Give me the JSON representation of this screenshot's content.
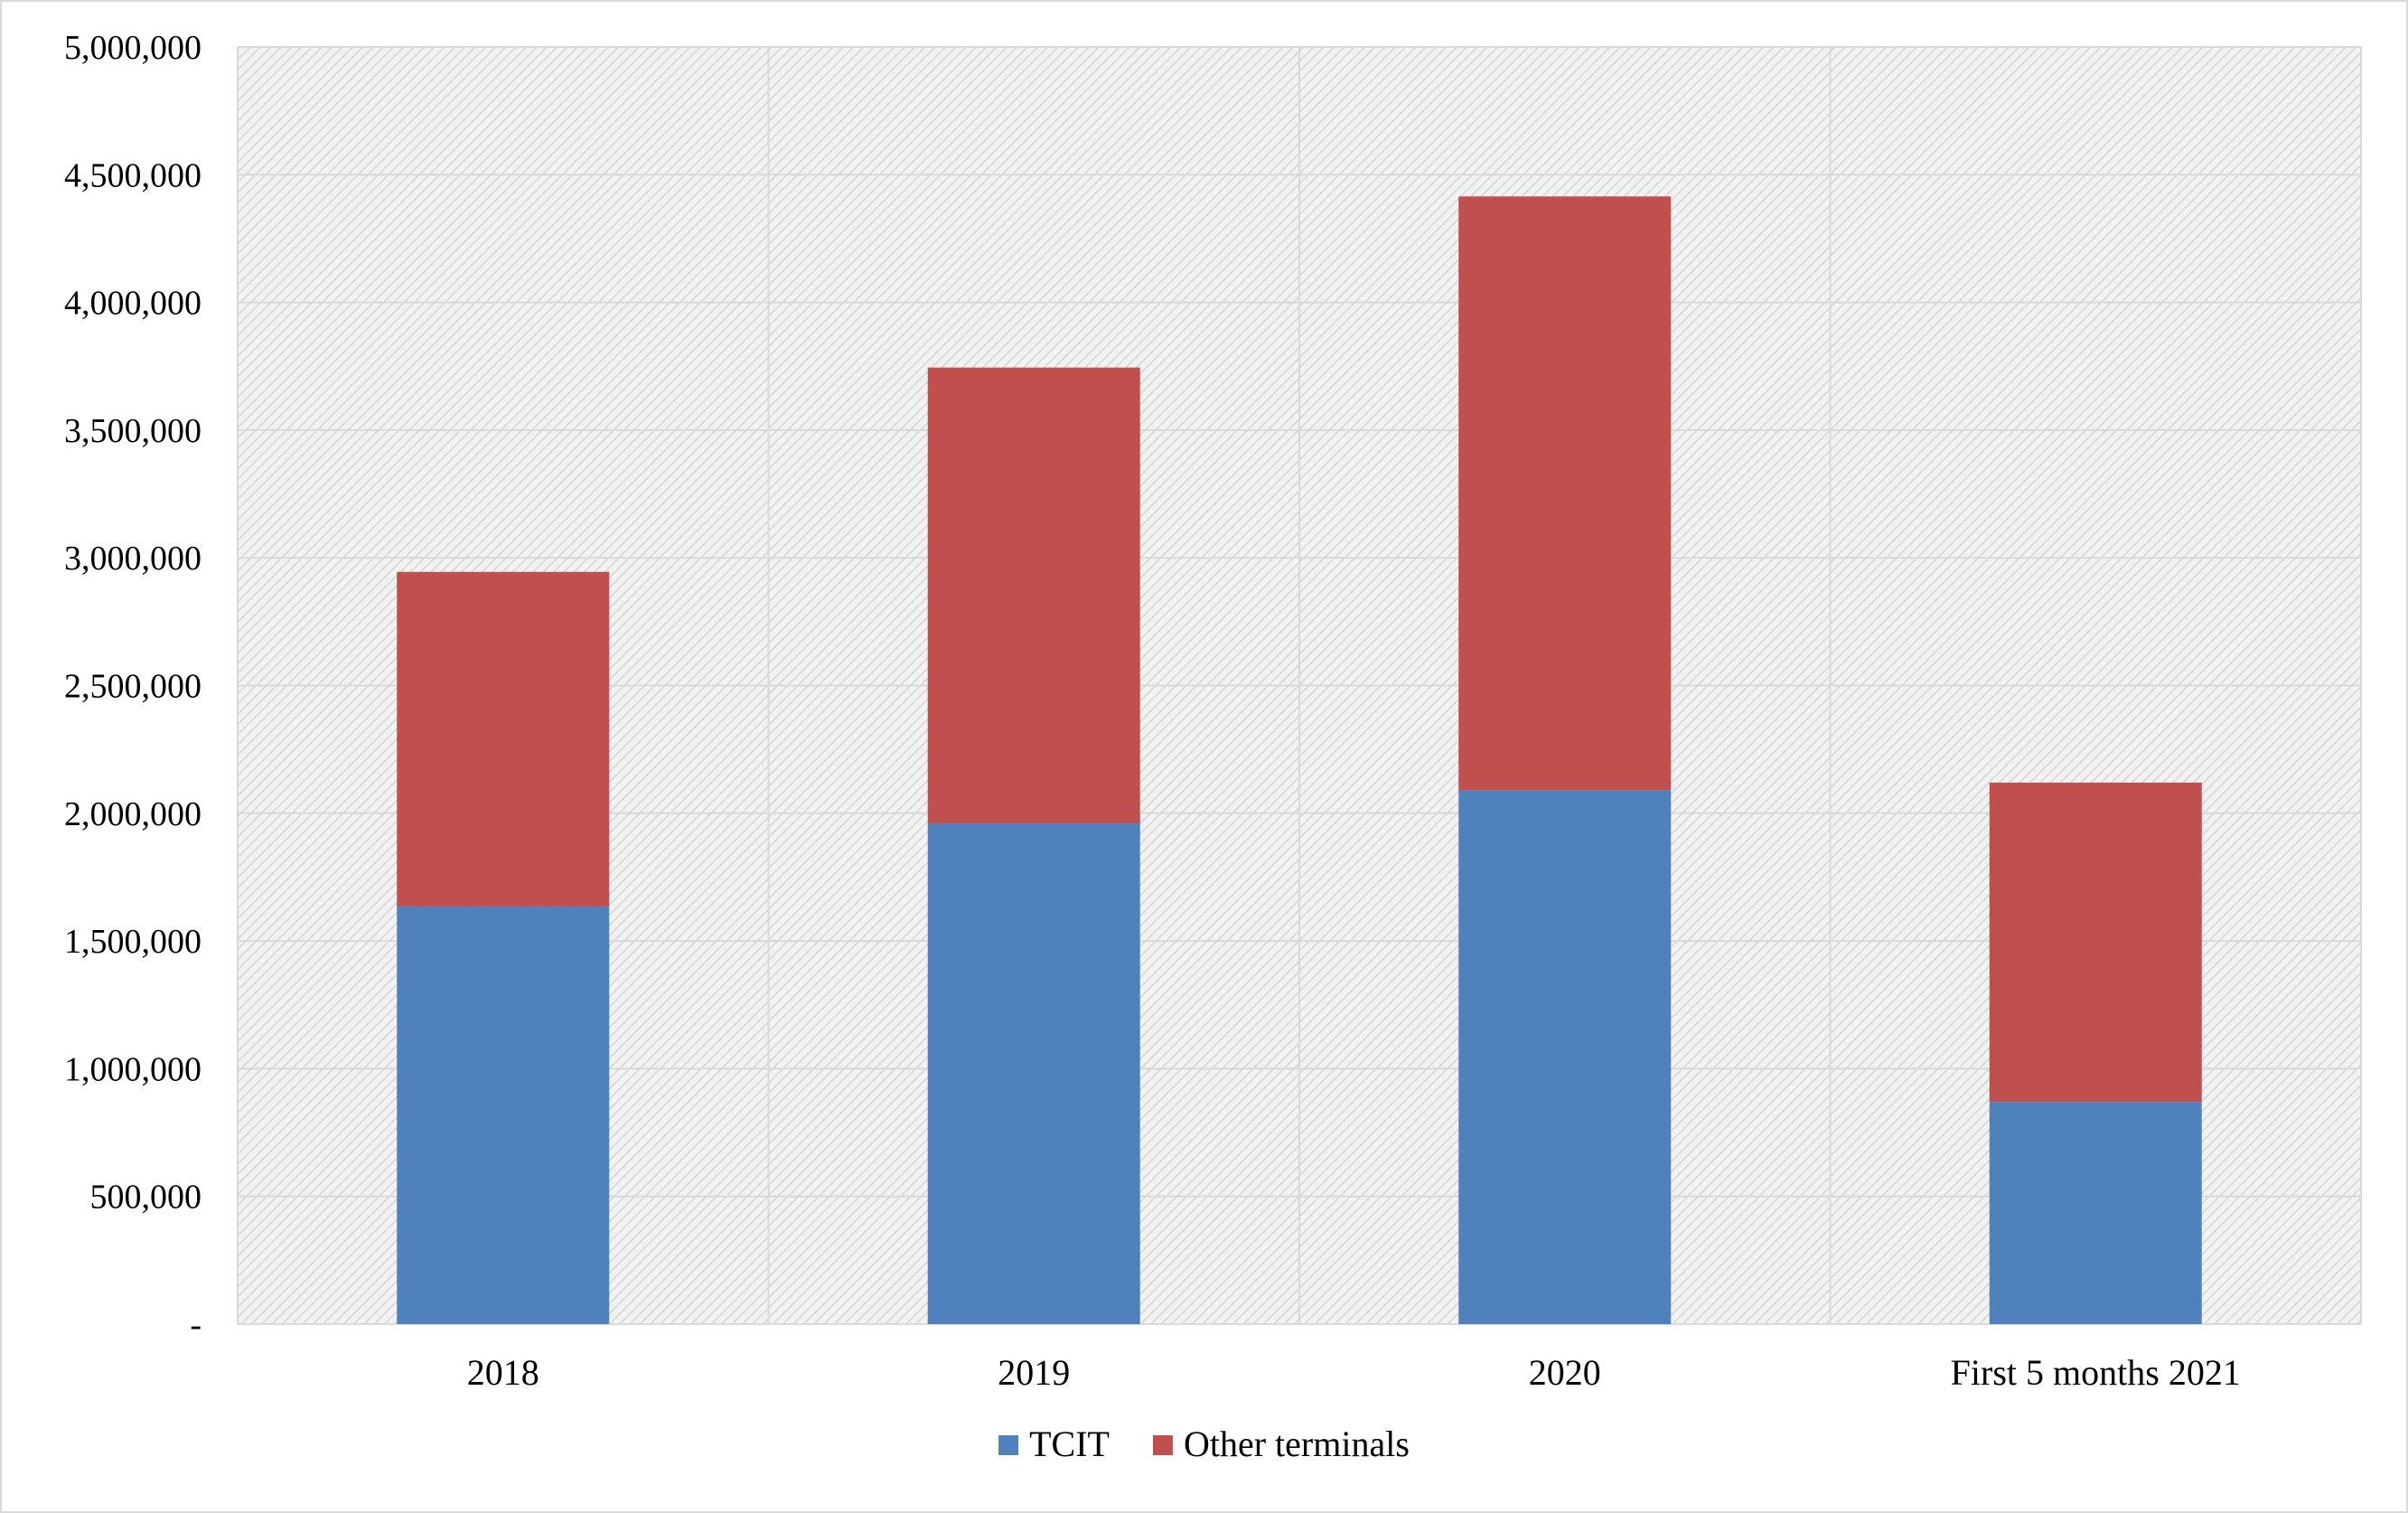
{
  "chart_data": {
    "type": "bar",
    "stacked": true,
    "title": "",
    "xlabel": "",
    "ylabel": "",
    "categories": [
      "2018",
      "2019",
      "2020",
      "First 5 months 2021"
    ],
    "series": [
      {
        "name": "TCIT",
        "color": "#4F81BD",
        "values": [
          1635000,
          1960000,
          2090000,
          870000
        ]
      },
      {
        "name": "Other terminals",
        "color": "#C0504D",
        "values": [
          1310000,
          1785000,
          2325000,
          1250000
        ]
      }
    ],
    "ylim": [
      0,
      5000000
    ],
    "yticks": [
      0,
      500000,
      1000000,
      1500000,
      2000000,
      2500000,
      3000000,
      3500000,
      4000000,
      4500000,
      5000000
    ],
    "ytick_labels": [
      "-",
      "500,000",
      "1,000,000",
      "1,500,000",
      "2,000,000",
      "2,500,000",
      "3,000,000",
      "3,500,000",
      "4,000,000",
      "4,500,000",
      "5,000,000"
    ],
    "grid": true,
    "legend": "bottom-center",
    "plot_background": "hatched light gray"
  }
}
